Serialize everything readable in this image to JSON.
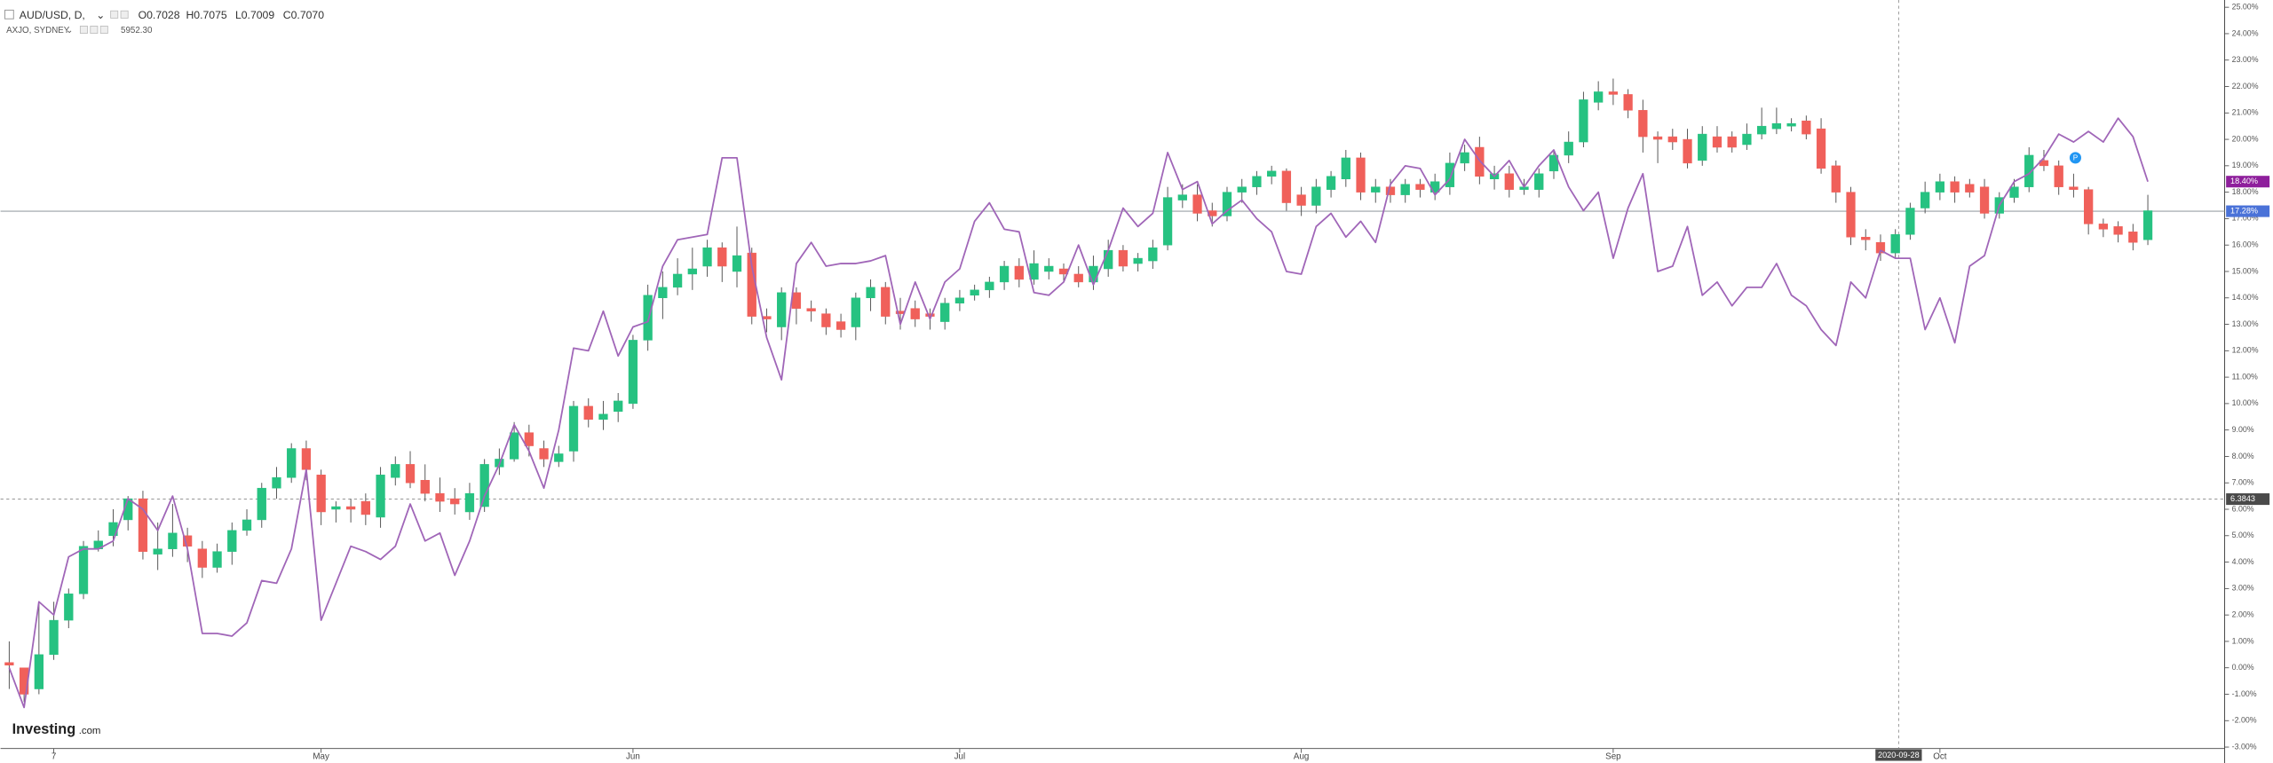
{
  "chart_data": {
    "type": "candlestick",
    "header": {
      "symbol": "AUD/USD, D,",
      "ohlc": [
        "O0.7028",
        "H0.7075",
        "L0.7009",
        "C0.7070"
      ],
      "overlay": "AXJO, SYDNEY",
      "overlay_value": "5952.30"
    },
    "logo": {
      "name": "Investing",
      "suffix": ".com"
    },
    "categories": [
      null,
      null,
      null,
      "7",
      null,
      null,
      null,
      null,
      null,
      null,
      null,
      null,
      null,
      null,
      null,
      null,
      null,
      null,
      null,
      null,
      null,
      "May",
      null,
      null,
      null,
      null,
      null,
      null,
      null,
      null,
      null,
      null,
      null,
      null,
      null,
      null,
      null,
      null,
      null,
      null,
      null,
      null,
      "Jun",
      null,
      null,
      null,
      null,
      null,
      null,
      null,
      null,
      null,
      null,
      null,
      null,
      null,
      null,
      null,
      null,
      null,
      null,
      null,
      null,
      null,
      "Jul",
      null,
      null,
      null,
      null,
      null,
      null,
      null,
      null,
      null,
      null,
      null,
      null,
      null,
      null,
      null,
      null,
      null,
      null,
      null,
      null,
      null,
      null,
      "Aug",
      null,
      null,
      null,
      null,
      null,
      null,
      null,
      null,
      null,
      null,
      null,
      null,
      null,
      null,
      null,
      null,
      null,
      null,
      null,
      null,
      "Sep",
      null,
      null,
      null,
      null,
      null,
      null,
      null,
      null,
      null,
      null,
      null,
      null,
      null,
      null,
      null,
      null,
      null,
      null,
      null,
      null,
      null,
      "Oct",
      null,
      null,
      null,
      null,
      null,
      null,
      null,
      null,
      null,
      null,
      null,
      null,
      null,
      null
    ],
    "series": [
      {
        "name": "AUD/USD, D,",
        "type": "candlestick",
        "up_color": "#26c281",
        "down_color": "#f0605a",
        "open": [
          0.2,
          0,
          -0.8,
          0.5,
          1.8,
          2.8,
          4.5,
          5,
          5.6,
          6.4,
          4.3,
          4.5,
          5,
          4.5,
          3.8,
          4.4,
          5.2,
          5.6,
          6.8,
          7.2,
          8.3,
          7.3,
          6,
          6.1,
          6.3,
          5.7,
          7.2,
          7.7,
          7.1,
          6.6,
          6.4,
          5.9,
          6.1,
          7.6,
          7.9,
          8.9,
          8.3,
          7.8,
          8.2,
          9.9,
          9.4,
          9.7,
          10,
          12.4,
          14,
          14.4,
          14.9,
          15.2,
          15.9,
          15,
          15.7,
          13.3,
          12.9,
          14.2,
          13.6,
          13.4,
          13.1,
          12.9,
          14,
          14.4,
          13.5,
          13.6,
          13.4,
          13.1,
          13.8,
          14.1,
          14.3,
          14.6,
          15.2,
          14.7,
          15,
          15.1,
          14.9,
          14.6,
          15.1,
          15.8,
          15.3,
          15.4,
          16,
          17.7,
          17.9,
          17.3,
          17.1,
          18,
          18.2,
          18.6,
          18.8,
          17.9,
          17.5,
          18.1,
          18.5,
          19.3,
          18,
          18.2,
          17.9,
          18.3,
          18,
          18.2,
          19.1,
          19.7,
          18.5,
          18.7,
          18.1,
          18.1,
          18.8,
          19.4,
          19.9,
          21.4,
          21.8,
          21.7,
          21.1,
          20.1,
          20.1,
          20,
          19.2,
          20.1,
          20.1,
          19.8,
          20.2,
          20.4,
          20.5,
          20.7,
          20.4,
          19,
          18,
          16.3,
          16.1,
          15.7,
          16.4,
          17.4,
          18,
          18.4,
          18.3,
          18.2,
          17.2,
          17.8,
          18.2,
          19.2,
          19,
          18.2,
          18.1,
          16.8,
          16.7,
          16.5,
          16.2
        ],
        "close": [
          0.1,
          -1,
          0.5,
          1.8,
          2.8,
          4.6,
          4.8,
          5.5,
          6.4,
          4.4,
          4.5,
          5.1,
          4.6,
          3.8,
          4.4,
          5.2,
          5.6,
          6.8,
          7.2,
          8.3,
          7.5,
          5.9,
          6.1,
          6,
          5.8,
          7.3,
          7.7,
          7,
          6.6,
          6.3,
          6.2,
          6.6,
          7.7,
          7.9,
          8.9,
          8.4,
          7.9,
          8.1,
          9.9,
          9.4,
          9.6,
          10.1,
          12.4,
          14.1,
          14.4,
          14.9,
          15.1,
          15.9,
          15.2,
          15.6,
          13.3,
          13.2,
          14.2,
          13.6,
          13.5,
          12.9,
          12.8,
          14,
          14.4,
          13.3,
          13.4,
          13.2,
          13.3,
          13.8,
          14,
          14.3,
          14.6,
          15.2,
          14.7,
          15.3,
          15.2,
          14.9,
          14.6,
          15.2,
          15.8,
          15.2,
          15.5,
          15.9,
          17.8,
          17.9,
          17.2,
          17.1,
          18,
          18.2,
          18.6,
          18.8,
          17.6,
          17.5,
          18.2,
          18.6,
          19.3,
          18,
          18.2,
          17.9,
          18.3,
          18.1,
          18.4,
          19.1,
          19.5,
          18.6,
          18.7,
          18.1,
          18.2,
          18.7,
          19.4,
          19.9,
          21.5,
          21.8,
          21.7,
          21.1,
          20.1,
          20,
          19.9,
          19.1,
          20.2,
          19.7,
          19.7,
          20.2,
          20.5,
          20.6,
          20.6,
          20.2,
          18.9,
          18,
          16.3,
          16.2,
          15.7,
          16.4,
          17.4,
          18,
          18.4,
          18,
          18,
          17.2,
          17.8,
          18.2,
          19.4,
          19,
          18.2,
          18.1,
          16.8,
          16.6,
          16.4,
          16.1,
          17.3
        ],
        "high": [
          1,
          0,
          2.5,
          2.5,
          3,
          4.8,
          5.2,
          6,
          6.5,
          6.7,
          5.5,
          6.2,
          5.3,
          4.8,
          4.7,
          5.5,
          6,
          7,
          7.6,
          8.5,
          8.6,
          7.5,
          6.3,
          6.4,
          6.6,
          7.6,
          8,
          8.2,
          7.7,
          7.2,
          6.8,
          7,
          7.9,
          8.3,
          9.3,
          9.2,
          8.6,
          8.4,
          10.1,
          10.2,
          10.1,
          10.4,
          12.6,
          14.5,
          15,
          15.5,
          15.9,
          16.2,
          16.1,
          16.7,
          15.9,
          13.6,
          14.4,
          14.4,
          13.9,
          13.6,
          13.4,
          14.2,
          14.7,
          14.6,
          14,
          13.9,
          13.6,
          14,
          14.3,
          14.5,
          14.8,
          15.4,
          15.5,
          15.8,
          15.5,
          15.3,
          15.2,
          15.6,
          16.2,
          16,
          15.7,
          16.2,
          18.2,
          18.3,
          18.3,
          17.6,
          18.2,
          18.5,
          18.8,
          19,
          18.9,
          18.2,
          18.5,
          18.8,
          19.6,
          19.5,
          18.5,
          18.5,
          18.5,
          18.5,
          18.7,
          19.5,
          19.8,
          20.1,
          19,
          19,
          18.5,
          18.9,
          19.6,
          20.3,
          21.8,
          22.2,
          22.3,
          21.9,
          21.5,
          20.3,
          20.4,
          20.4,
          20.5,
          20.5,
          20.3,
          20.6,
          21.2,
          21.2,
          20.8,
          20.9,
          20.8,
          19.2,
          18.2,
          16.6,
          16.4,
          16.6,
          17.6,
          18.4,
          18.7,
          18.6,
          18.5,
          18.5,
          18,
          18.5,
          19.7,
          19.6,
          19.2,
          18.7,
          18.2,
          17,
          16.9,
          16.8,
          17.9
        ],
        "low": [
          -0.8,
          -1.3,
          -1,
          0.3,
          1.5,
          2.6,
          4.4,
          4.6,
          5.2,
          4.1,
          3.7,
          4.2,
          4,
          3.4,
          3.6,
          3.9,
          5,
          5.3,
          6.4,
          7,
          7.1,
          5.4,
          5.5,
          5.5,
          5.4,
          5.3,
          6.9,
          6.8,
          6.3,
          5.9,
          5.8,
          5.6,
          5.9,
          7.3,
          7.8,
          8,
          7.6,
          7.6,
          7.8,
          9.1,
          9,
          9.3,
          9.8,
          12,
          13.2,
          14.1,
          14.3,
          14.8,
          14.6,
          14.4,
          13,
          12.7,
          12.4,
          13,
          13.1,
          12.6,
          12.5,
          12.4,
          13.5,
          13,
          12.8,
          12.9,
          12.8,
          12.8,
          13.5,
          13.9,
          14,
          14.3,
          14.4,
          14.5,
          14.7,
          14.6,
          14.4,
          14.3,
          14.8,
          15,
          15,
          15.1,
          15.8,
          17.4,
          16.9,
          16.7,
          16.9,
          17.6,
          17.9,
          18.3,
          17.3,
          17.1,
          17.2,
          17.8,
          18.2,
          17.7,
          17.6,
          17.6,
          17.6,
          17.8,
          17.7,
          17.9,
          18.8,
          18.3,
          18.1,
          17.8,
          17.9,
          17.8,
          18.5,
          19.1,
          19.7,
          21.1,
          21.3,
          20.8,
          19.5,
          19.1,
          19.6,
          18.9,
          19,
          19.5,
          19.5,
          19.6,
          20,
          20.2,
          20.3,
          20,
          18.7,
          17.6,
          16,
          15.8,
          15.4,
          15.5,
          16.2,
          17.2,
          17.7,
          17.6,
          17.8,
          17,
          17,
          17.6,
          18,
          18.8,
          17.9,
          17.8,
          16.4,
          16.3,
          16.1,
          15.8,
          16
        ]
      },
      {
        "name": "AXJO, SYDNEY",
        "type": "line",
        "color": "#a066b8",
        "last_label": "18.40%",
        "tag_color": "#8e1f9c",
        "values": [
          0,
          -1.5,
          2.5,
          2,
          4.2,
          4.5,
          4.5,
          4.8,
          6.4,
          6,
          5.2,
          6.5,
          4.5,
          1.3,
          1.3,
          1.2,
          1.7,
          3.3,
          3.2,
          4.5,
          7.5,
          1.8,
          3.2,
          4.6,
          4.4,
          4.1,
          4.6,
          6.2,
          4.8,
          5.1,
          3.5,
          4.8,
          6.5,
          7.7,
          9.2,
          8.2,
          6.8,
          9,
          12.1,
          12,
          13.5,
          11.8,
          12.9,
          13.1,
          15.2,
          16.2,
          16.3,
          16.4,
          19.3,
          19.3,
          15.2,
          12.5,
          10.9,
          15.3,
          16.1,
          15.2,
          15.3,
          15.3,
          15.4,
          15.6,
          13,
          14.6,
          13.2,
          14.6,
          15.1,
          16.9,
          17.6,
          16.6,
          16.5,
          14.2,
          14.1,
          14.6,
          16,
          14.5,
          15.8,
          17.4,
          16.7,
          17.2,
          19.5,
          18.1,
          18.4,
          16.8,
          17.3,
          17.7,
          17,
          16.5,
          15,
          14.9,
          16.7,
          17.2,
          16.3,
          16.9,
          16.1,
          18.3,
          19,
          18.9,
          17.9,
          18.5,
          20,
          19.2,
          18.6,
          19.2,
          18.2,
          19,
          19.6,
          18.2,
          17.3,
          18,
          15.5,
          17.4,
          18.7,
          15,
          15.2,
          16.7,
          14.1,
          14.6,
          13.7,
          14.4,
          14.4,
          15.3,
          14.1,
          13.7,
          12.8,
          12.2,
          14.6,
          14,
          15.8,
          15.5,
          15.5,
          12.8,
          14,
          12.3,
          15.2,
          15.6,
          17.5,
          18.4,
          18.7,
          19.3,
          20.2,
          19.9,
          20.3,
          19.9,
          20.8,
          20.1,
          18.4
        ]
      }
    ],
    "price_line": {
      "value": 17.28,
      "label": "17.28%",
      "color": "#4a72d8"
    },
    "crosshair": {
      "value": 6.3843,
      "date": "2020-09-28"
    },
    "ylim": [
      -3,
      25
    ],
    "yticks": [
      {
        "value": 25,
        "label": "25.00%"
      },
      {
        "value": 24,
        "label": "24.00%"
      },
      {
        "value": 23,
        "label": "23.00%"
      },
      {
        "value": 22,
        "label": "22.00%"
      },
      {
        "value": 21,
        "label": "21.00%"
      },
      {
        "value": 20,
        "label": "20.00%"
      },
      {
        "value": 19,
        "label": "19.00%"
      },
      {
        "value": 18,
        "label": "18.00%"
      },
      {
        "value": 17,
        "label": "17.00%"
      },
      {
        "value": 16,
        "label": "16.00%"
      },
      {
        "value": 15,
        "label": "15.00%"
      },
      {
        "value": 14,
        "label": "14.00%"
      },
      {
        "value": 13,
        "label": "13.00%"
      },
      {
        "value": 12,
        "label": "12.00%"
      },
      {
        "value": 11,
        "label": "11.00%"
      },
      {
        "value": 10,
        "label": "10.00%"
      },
      {
        "value": 9,
        "label": "9.00%"
      },
      {
        "value": 8,
        "label": "8.00%"
      },
      {
        "value": 7,
        "label": "7.00%"
      },
      {
        "value": 6,
        "label": "6.00%"
      },
      {
        "value": 5,
        "label": "5.00%"
      },
      {
        "value": 4,
        "label": "4.00%"
      },
      {
        "value": 3,
        "label": "3.00%"
      },
      {
        "value": 2,
        "label": "2.00%"
      },
      {
        "value": 1,
        "label": "1.00%"
      },
      {
        "value": 0,
        "label": "0.00%"
      },
      {
        "value": -1,
        "label": "-1.00%"
      },
      {
        "value": -2,
        "label": "-2.00%"
      },
      {
        "value": -3,
        "label": "-3.00%"
      }
    ],
    "grid": false
  }
}
